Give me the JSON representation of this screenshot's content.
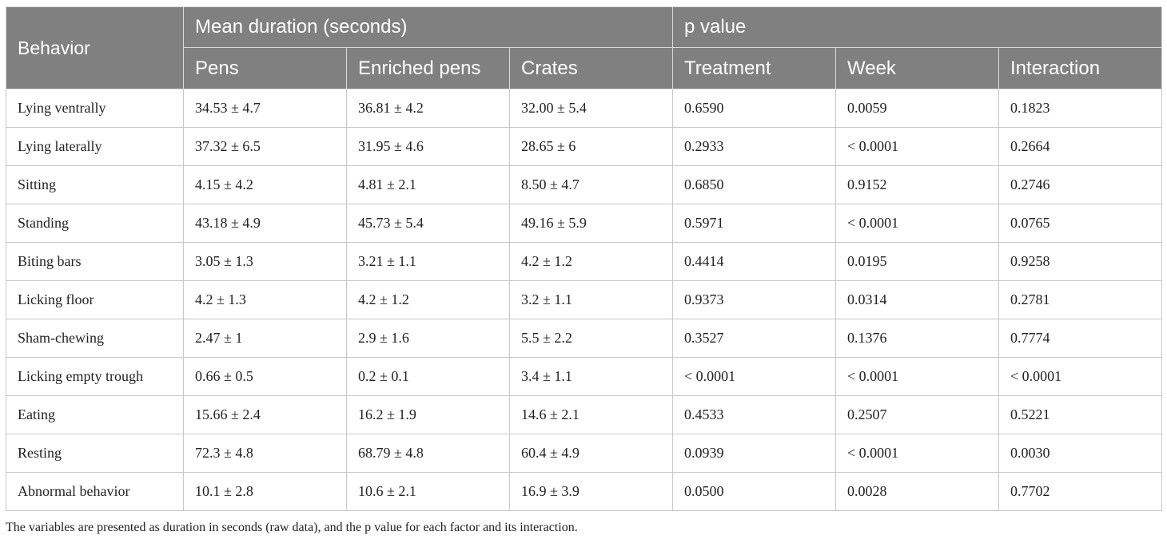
{
  "header": {
    "behavior": "Behavior",
    "group_mean": "Mean duration (seconds)",
    "group_p": "p value",
    "sub": [
      "Pens",
      "Enriched pens",
      "Crates",
      "Treatment",
      "Week",
      "Interaction"
    ]
  },
  "rows": [
    [
      "Lying ventrally",
      "34.53 ± 4.7",
      "36.81 ± 4.2",
      "32.00 ± 5.4",
      "0.6590",
      "0.0059",
      "0.1823"
    ],
    [
      "Lying laterally",
      "37.32 ± 6.5",
      "31.95 ± 4.6",
      "28.65 ± 6",
      "0.2933",
      "< 0.0001",
      "0.2664"
    ],
    [
      "Sitting",
      "4.15 ± 4.2",
      "4.81 ± 2.1",
      "8.50 ± 4.7",
      "0.6850",
      "0.9152",
      "0.2746"
    ],
    [
      "Standing",
      "43.18 ± 4.9",
      "45.73 ± 5.4",
      "49.16 ± 5.9",
      "0.5971",
      "< 0.0001",
      "0.0765"
    ],
    [
      "Biting bars",
      "3.05 ± 1.3",
      "3.21 ± 1.1",
      "4.2 ± 1.2",
      "0.4414",
      "0.0195",
      "0.9258"
    ],
    [
      "Licking floor",
      "4.2 ± 1.3",
      "4.2 ± 1.2",
      "3.2 ± 1.1",
      "0.9373",
      "0.0314",
      "0.2781"
    ],
    [
      "Sham-chewing",
      "2.47 ± 1",
      "2.9 ± 1.6",
      "5.5 ± 2.2",
      "0.3527",
      "0.1376",
      "0.7774"
    ],
    [
      "Licking empty trough",
      "0.66 ± 0.5",
      "0.2 ± 0.1",
      "3.4 ± 1.1",
      "< 0.0001",
      "< 0.0001",
      "< 0.0001"
    ],
    [
      "Eating",
      "15.66 ± 2.4",
      "16.2 ± 1.9",
      "14.6 ± 2.1",
      "0.4533",
      "0.2507",
      "0.5221"
    ],
    [
      "Resting",
      "72.3 ± 4.8",
      "68.79 ± 4.8",
      "60.4 ± 4.9",
      "0.0939",
      "< 0.0001",
      "0.0030"
    ],
    [
      "Abnormal behavior",
      "10.1 ± 2.8",
      "10.6 ± 2.1",
      "16.9 ± 3.9",
      "0.0500",
      "0.0028",
      "0.7702"
    ]
  ],
  "footnote": "The variables are presented as duration in seconds (raw data), and the p value for each factor and its interaction.",
  "colors": {
    "header_bg": "#808080",
    "header_text": "#ffffff",
    "grid": "#c8c8c8"
  }
}
